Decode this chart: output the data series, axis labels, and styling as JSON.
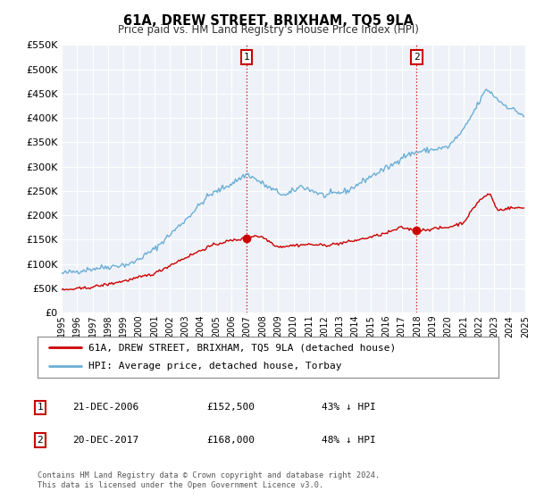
{
  "title": "61A, DREW STREET, BRIXHAM, TQ5 9LA",
  "subtitle": "Price paid vs. HM Land Registry's House Price Index (HPI)",
  "legend_entry1": "61A, DREW STREET, BRIXHAM, TQ5 9LA (detached house)",
  "legend_entry2": "HPI: Average price, detached house, Torbay",
  "transaction1_date": "21-DEC-2006",
  "transaction1_price": "£152,500",
  "transaction1_pct": "43% ↓ HPI",
  "transaction2_date": "20-DEC-2017",
  "transaction2_price": "£168,000",
  "transaction2_pct": "48% ↓ HPI",
  "footer_line1": "Contains HM Land Registry data © Crown copyright and database right 2024.",
  "footer_line2": "This data is licensed under the Open Government Licence v3.0.",
  "vline1_x": 2006.97,
  "vline2_x": 2017.97,
  "hpi_color": "#6baed6",
  "price_color": "#cc0000",
  "ylim": [
    0,
    550000
  ],
  "xlim": [
    1995.0,
    2025.0
  ],
  "plot_bg": "#eef2f8",
  "grid_color": "#ffffff",
  "hpi_anchors_x": [
    1995.0,
    1997.0,
    1999.5,
    2001.0,
    2003.0,
    2004.5,
    2006.0,
    2007.0,
    2008.5,
    2009.5,
    2010.5,
    2012.0,
    2013.5,
    2015.0,
    2016.5,
    2017.0,
    2018.0,
    2019.0,
    2020.0,
    2021.0,
    2022.5,
    2023.5,
    2024.9
  ],
  "hpi_anchors_y": [
    80000,
    90000,
    100000,
    130000,
    190000,
    240000,
    265000,
    285000,
    255000,
    240000,
    260000,
    240000,
    250000,
    280000,
    305000,
    320000,
    330000,
    335000,
    340000,
    375000,
    460000,
    430000,
    405000
  ],
  "price_anchors_x": [
    1995.0,
    1996.5,
    1998.0,
    1999.5,
    2001.0,
    2002.5,
    2003.5,
    2004.5,
    2005.5,
    2006.0,
    2006.97,
    2007.5,
    2008.0,
    2009.0,
    2010.0,
    2011.0,
    2012.0,
    2013.0,
    2014.0,
    2015.0,
    2016.0,
    2017.0,
    2017.97,
    2018.5,
    2019.0,
    2020.0,
    2021.0,
    2022.0,
    2022.7,
    2023.2,
    2024.0,
    2024.9
  ],
  "price_anchors_y": [
    46000,
    50000,
    58000,
    68000,
    80000,
    105000,
    120000,
    135000,
    145000,
    148000,
    152500,
    158000,
    155000,
    135000,
    138000,
    140000,
    138000,
    142000,
    148000,
    155000,
    163000,
    175000,
    168000,
    170000,
    172000,
    175000,
    185000,
    230000,
    245000,
    210000,
    215000,
    215000
  ],
  "noise_seed": 42,
  "noise_hpi": 3000,
  "noise_price": 1500
}
